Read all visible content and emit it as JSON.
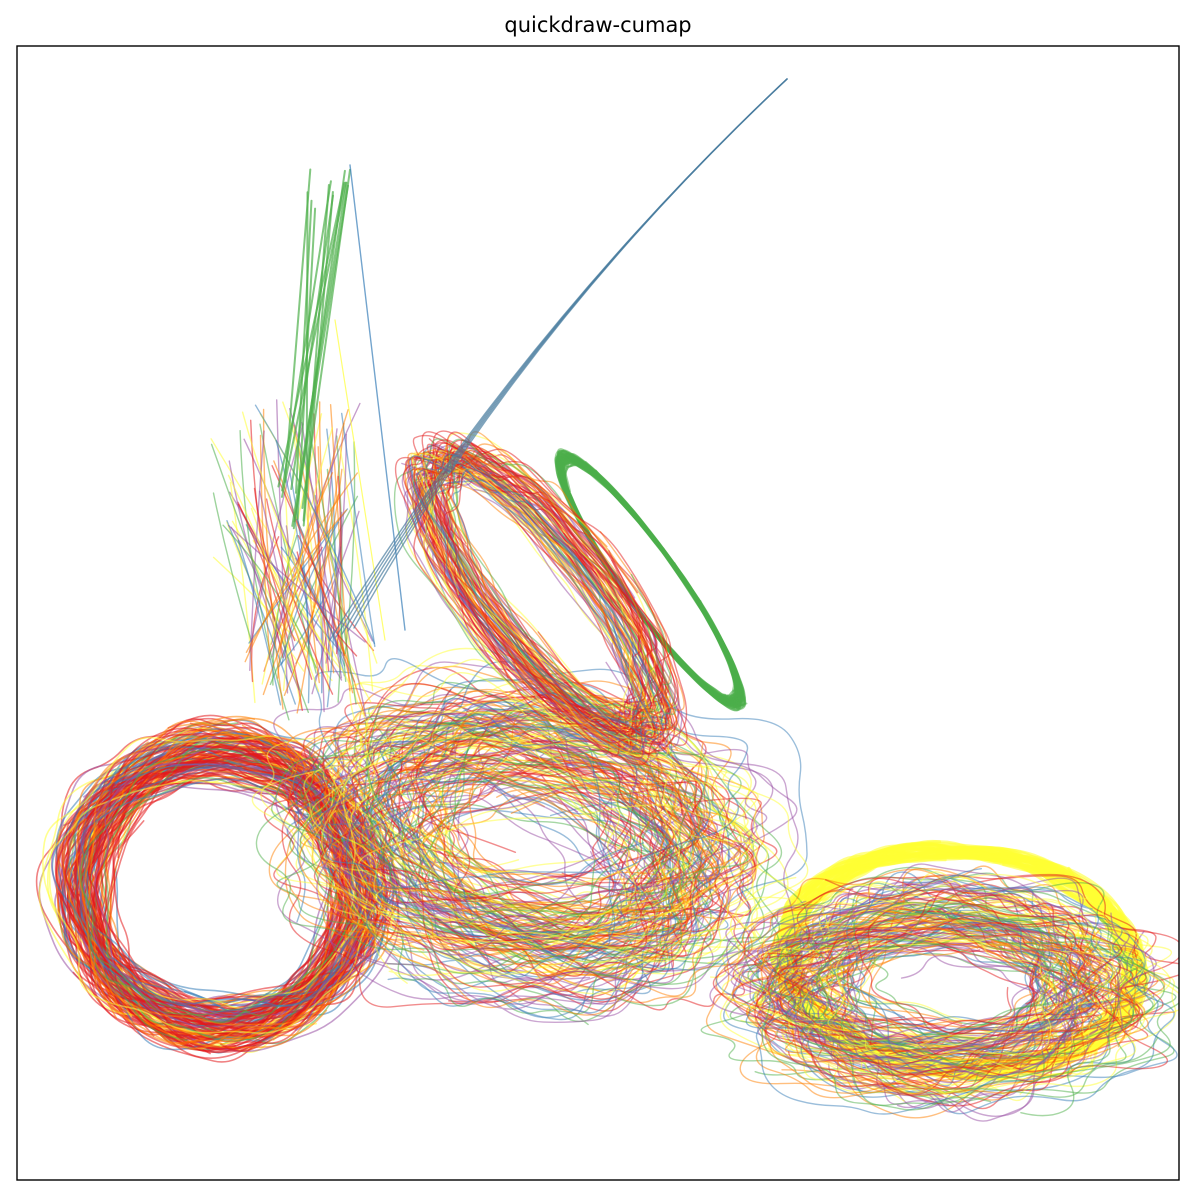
{
  "chart_data": {
    "type": "line",
    "title": "quickdraw-cumap",
    "colors": [
      "#e41a1c",
      "#377eb8",
      "#4daf4a",
      "#984ea3",
      "#ff7f00",
      "#ffff33"
    ]
  }
}
